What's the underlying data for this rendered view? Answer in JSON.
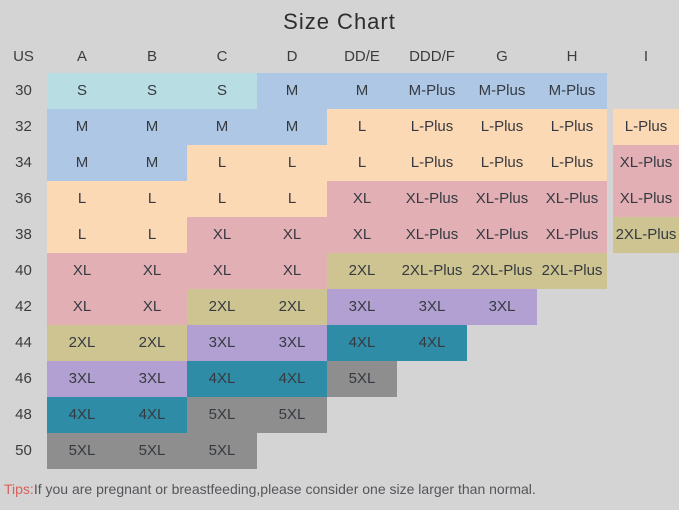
{
  "title": "Size Chart",
  "tips": {
    "label": "Tips:",
    "text": "If you are pregnant or breastfeeding,please consider one size larger than normal."
  },
  "colors": {
    "background": "#d4d4d4",
    "S": "#b8dde3",
    "M": "#aec7e5",
    "L": "#fbd9b5",
    "XL": "#e2afb5",
    "2XL": "#cdc492",
    "3XL": "#b2a0d2",
    "4XL": "#2e8ca7",
    "5XL": "#8e8e8e",
    "tips_label": "#d95f5a",
    "cell_text": "#363a40"
  },
  "chart_data": {
    "type": "table",
    "title": "Size Chart",
    "columns": [
      "US",
      "A",
      "B",
      "C",
      "D",
      "DD/E",
      "DDD/F",
      "G",
      "H",
      "I"
    ],
    "rows": [
      {
        "us": "30",
        "cells": [
          "S",
          "S",
          "S",
          "M",
          "M",
          "M-Plus",
          "M-Plus",
          "M-Plus",
          null
        ]
      },
      {
        "us": "32",
        "cells": [
          "M",
          "M",
          "M",
          "M",
          "L",
          "L-Plus",
          "L-Plus",
          "L-Plus",
          "L-Plus"
        ]
      },
      {
        "us": "34",
        "cells": [
          "M",
          "M",
          "L",
          "L",
          "L",
          "L-Plus",
          "L-Plus",
          "L-Plus",
          "XL-Plus"
        ]
      },
      {
        "us": "36",
        "cells": [
          "L",
          "L",
          "L",
          "L",
          "XL",
          "XL-Plus",
          "XL-Plus",
          "XL-Plus",
          "XL-Plus"
        ]
      },
      {
        "us": "38",
        "cells": [
          "L",
          "L",
          "XL",
          "XL",
          "XL",
          "XL-Plus",
          "XL-Plus",
          "XL-Plus",
          "2XL-Plus"
        ]
      },
      {
        "us": "40",
        "cells": [
          "XL",
          "XL",
          "XL",
          "XL",
          "2XL",
          "2XL-Plus",
          "2XL-Plus",
          "2XL-Plus",
          null
        ]
      },
      {
        "us": "42",
        "cells": [
          "XL",
          "XL",
          "2XL",
          "2XL",
          "3XL",
          "3XL",
          "3XL",
          null,
          null
        ]
      },
      {
        "us": "44",
        "cells": [
          "2XL",
          "2XL",
          "3XL",
          "3XL",
          "4XL",
          "4XL",
          null,
          null,
          null
        ]
      },
      {
        "us": "46",
        "cells": [
          "3XL",
          "3XL",
          "4XL",
          "4XL",
          "5XL",
          null,
          null,
          null,
          null
        ]
      },
      {
        "us": "48",
        "cells": [
          "4XL",
          "4XL",
          "5XL",
          "5XL",
          null,
          null,
          null,
          null,
          null
        ]
      },
      {
        "us": "50",
        "cells": [
          "5XL",
          "5XL",
          "5XL",
          null,
          null,
          null,
          null,
          null,
          null
        ]
      }
    ]
  }
}
